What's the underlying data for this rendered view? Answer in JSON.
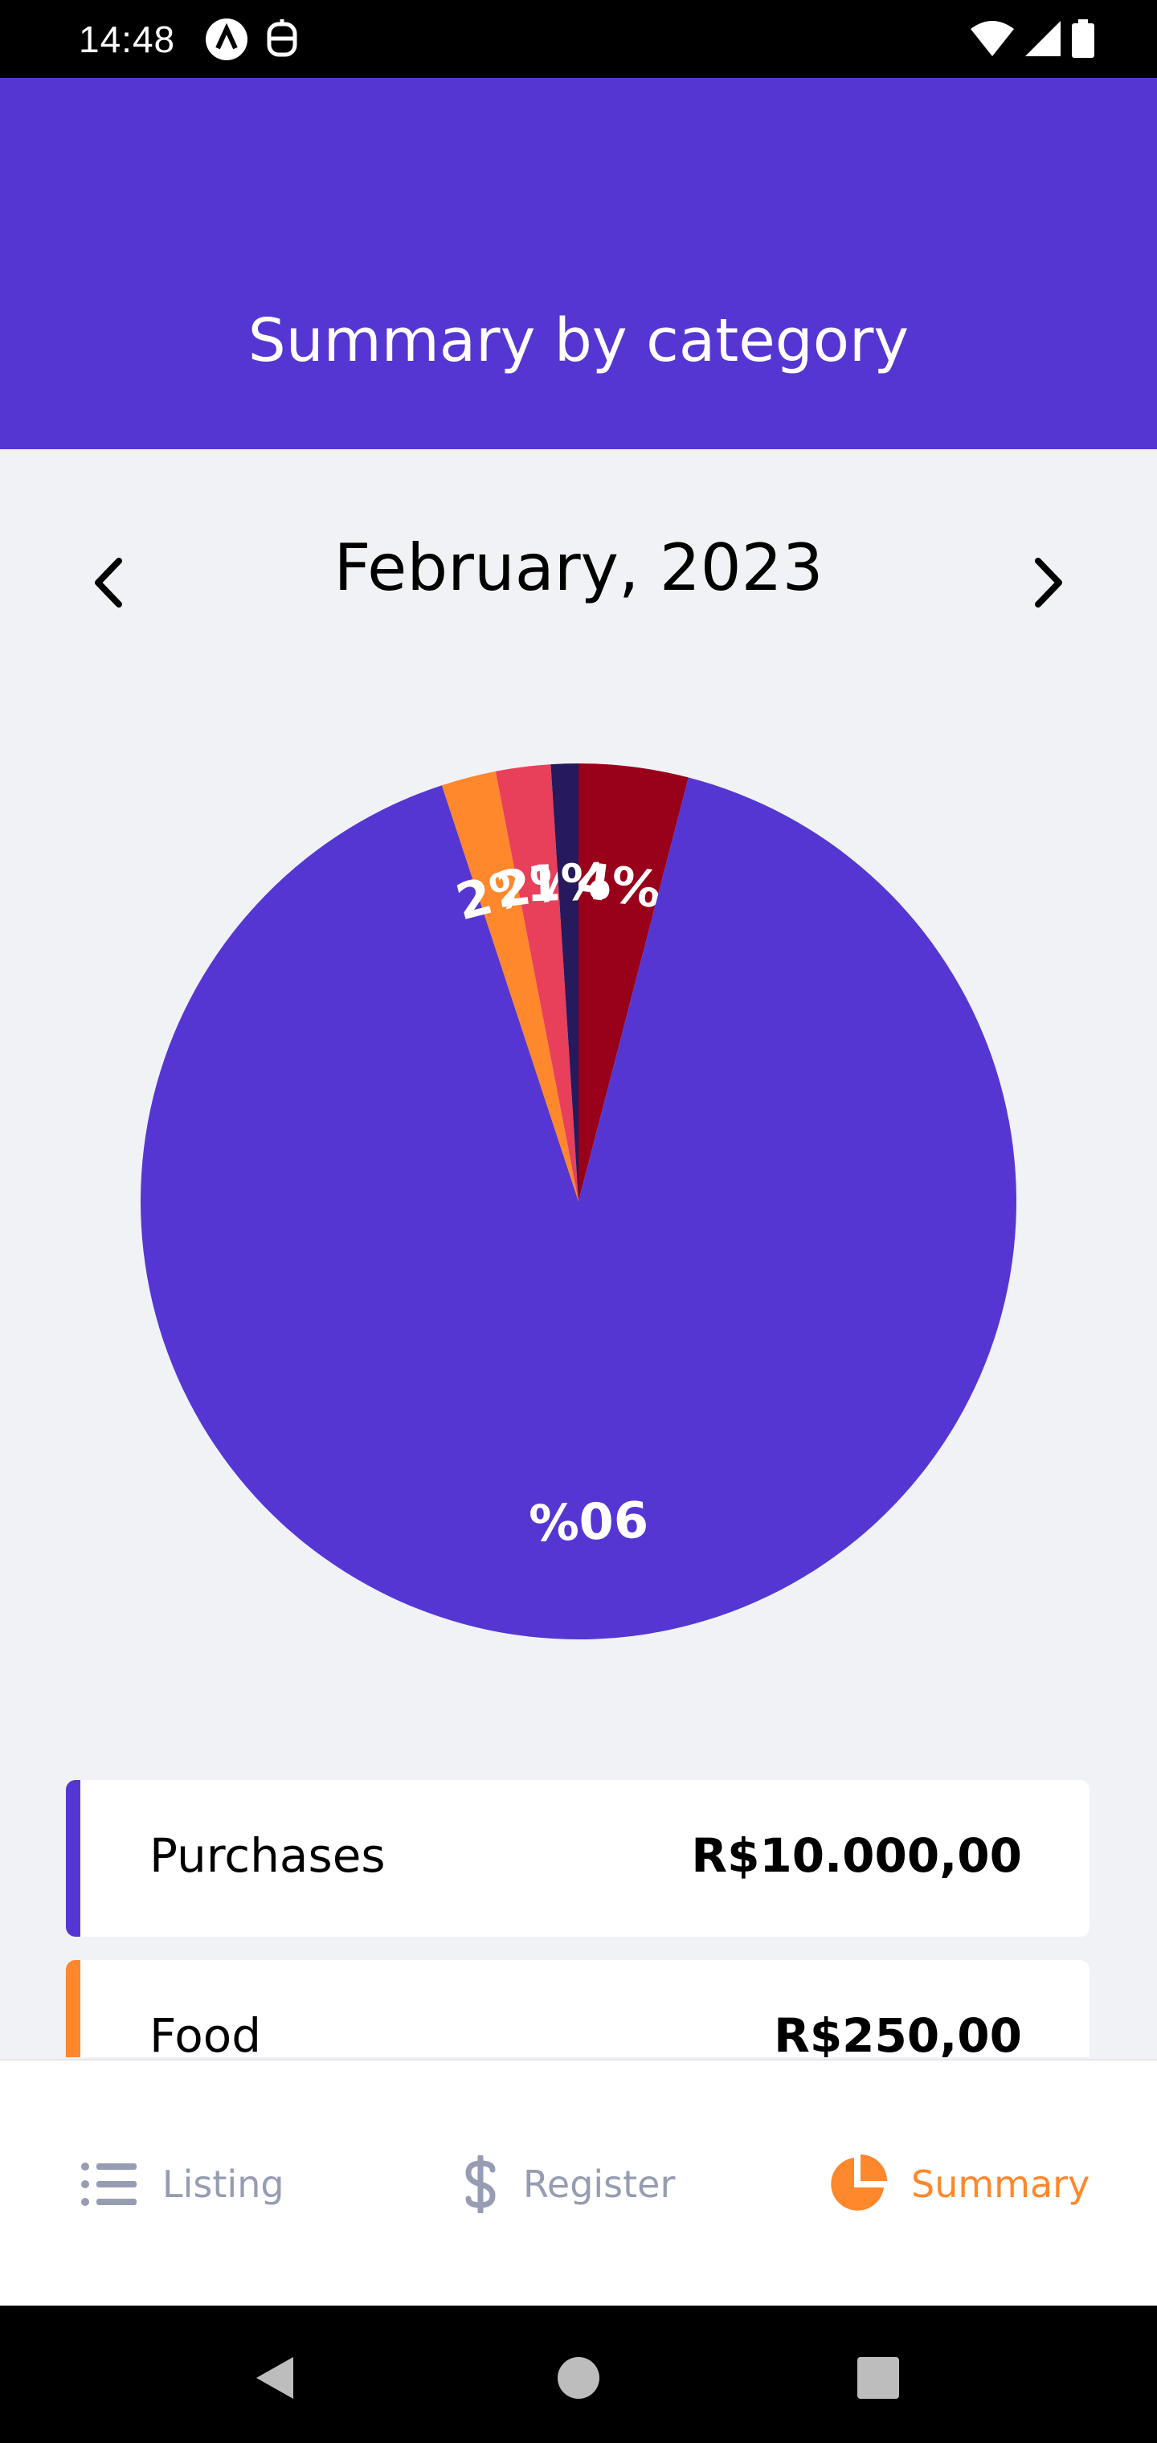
{
  "status_bar": {
    "time": "14:48",
    "left_icons": [
      "a-icon",
      "shield-icon"
    ],
    "right_icons": [
      "wifi-icon",
      "signal-icon",
      "battery-icon"
    ]
  },
  "header": {
    "title": "Summary by category"
  },
  "month_selector": {
    "label": "February, 2023",
    "prev_icon": "chevron-left-icon",
    "next_icon": "chevron-right-icon"
  },
  "chart_data": {
    "type": "pie",
    "title": "",
    "slices": [
      {
        "label": "4%",
        "value": 4,
        "color": "#990019"
      },
      {
        "label": "90%",
        "value": 90,
        "color": "#5636D3"
      },
      {
        "label": "2%",
        "value": 2,
        "color": "#FF872C"
      },
      {
        "label": "2%",
        "value": 2,
        "color": "#E83F5B"
      },
      {
        "label": "1%",
        "value": 1,
        "color": "#26195C"
      }
    ]
  },
  "categories": [
    {
      "name": "Purchases",
      "amount": "R$10.000,00",
      "color": "#5636D3"
    },
    {
      "name": "Food",
      "amount": "R$250,00",
      "color": "#FF872C"
    }
  ],
  "tabbar": {
    "listing": {
      "label": "Listing",
      "icon": "list-icon",
      "color": "#969CB2"
    },
    "register": {
      "label": "Register",
      "icon": "dollar-icon",
      "color": "#969CB2"
    },
    "summary": {
      "label": "Summary",
      "icon": "pie-chart-icon",
      "color": "#FF872C"
    }
  },
  "nav_bar": {
    "icons": [
      "back-icon",
      "home-icon",
      "recents-icon"
    ]
  }
}
